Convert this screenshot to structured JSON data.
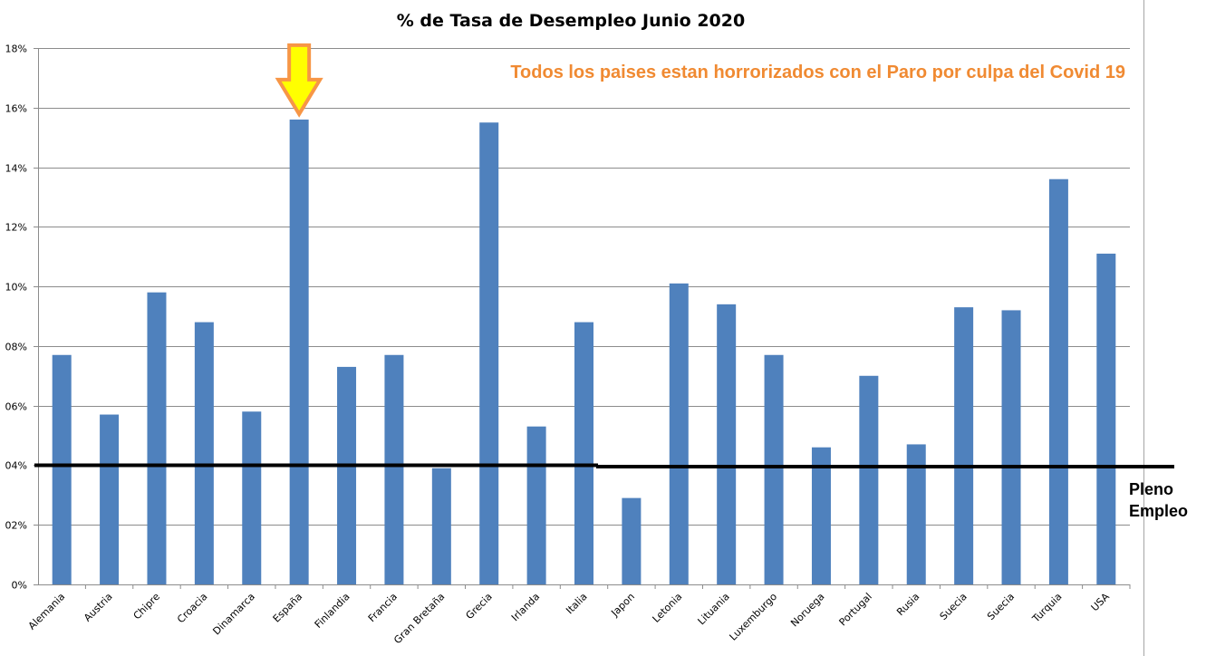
{
  "chart_data": {
    "type": "bar",
    "title": "% de Tasa de Desempleo Junio 2020",
    "annotation": "Todos los paises estan horrorizados con el Paro por culpa del Covid 19",
    "categories": [
      "Alemania",
      "Austria",
      "Chipre",
      "Croacia",
      "Dinamarca",
      "España",
      "Finlandia",
      "Francia",
      "Gran Bretaña",
      "Grecia",
      "Irlanda",
      "Italia",
      "Japon",
      "Letonia",
      "Lituania",
      "Luxemburgo",
      "Noruega",
      "Portugal",
      "Rusia",
      "Suecia",
      "Suecia",
      "Turquia",
      "USA"
    ],
    "values": [
      7.7,
      5.7,
      9.8,
      8.8,
      5.8,
      15.6,
      7.3,
      7.7,
      3.9,
      15.5,
      5.3,
      8.8,
      2.9,
      10.1,
      9.4,
      7.7,
      4.6,
      7.0,
      4.7,
      9.3,
      9.2,
      13.6,
      11.1
    ],
    "y_ticks": [
      "0%",
      "02%",
      "04%",
      "06%",
      "08%",
      "10%",
      "12%",
      "14%",
      "16%",
      "18%"
    ],
    "ylim": [
      0,
      18
    ],
    "grid": true,
    "bar_color": "#4f81bd",
    "reference_line": {
      "value": 4,
      "label_line1": "Pleno",
      "label_line2": "Empleo"
    },
    "highlight": {
      "category": "España",
      "marker": "down-arrow",
      "fill": "#ffff00",
      "stroke": "#f79646"
    }
  }
}
